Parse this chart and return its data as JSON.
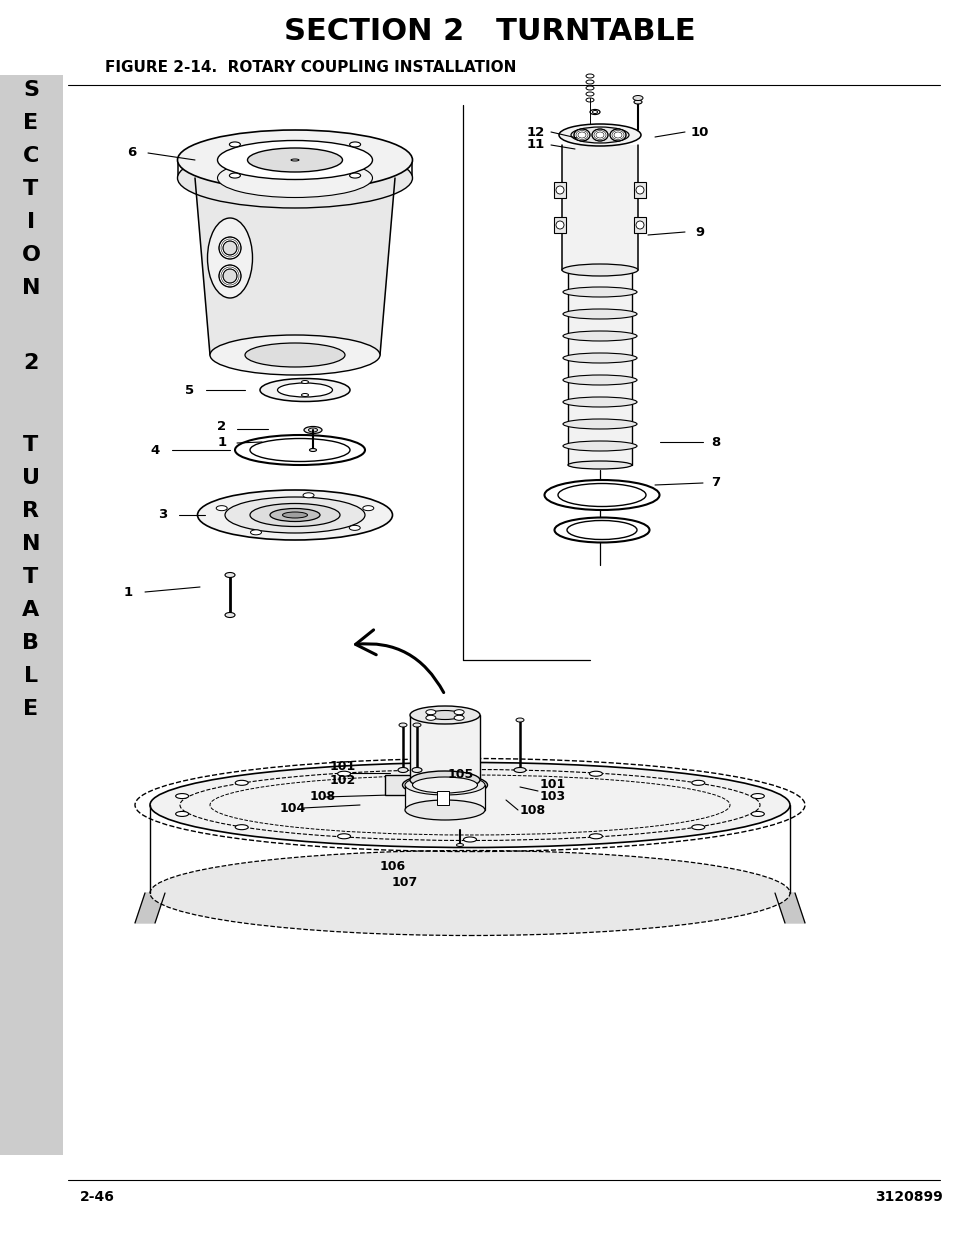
{
  "title": "SECTION 2   TURNTABLE",
  "figure_label": "FIGURE 2-14.  ROTARY COUPLING INSTALLATION",
  "page_left": "2-46",
  "page_right": "3120899",
  "title_fontsize": 22,
  "figure_label_fontsize": 11,
  "page_fontsize": 10,
  "sidebar_bg": "#cccccc",
  "bg_color": "#ffffff",
  "sidebar_chars": [
    "S",
    "E",
    "C",
    "T",
    "I",
    "O",
    "N",
    "",
    "2",
    "",
    "T",
    "U",
    "R",
    "N",
    "T",
    "A",
    "B",
    "L",
    "E"
  ],
  "sidebar_fontsize": 16,
  "line_color": "#000000",
  "body_fill": "#f2f2f2",
  "body_fill2": "#e8e8e8",
  "body_fill3": "#dedede"
}
